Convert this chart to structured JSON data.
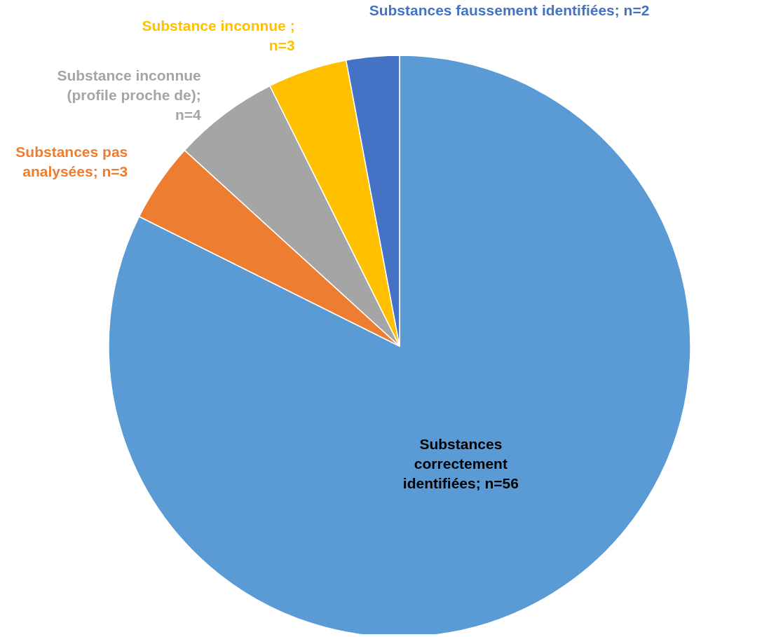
{
  "chart_data": {
    "type": "pie",
    "categories": [
      "Substances correctement identifiées; n=56",
      "Substances pas analysées; n=3",
      "Substance inconnue (profile proche de); n=4",
      "Substance inconnue ; n=3",
      "Substances faussement identifiées; n=2"
    ],
    "values": [
      56,
      3,
      4,
      3,
      2
    ],
    "colors": [
      "#5b9bd5",
      "#ed7d31",
      "#a5a5a5",
      "#ffc000",
      "#4472c4"
    ]
  }
}
